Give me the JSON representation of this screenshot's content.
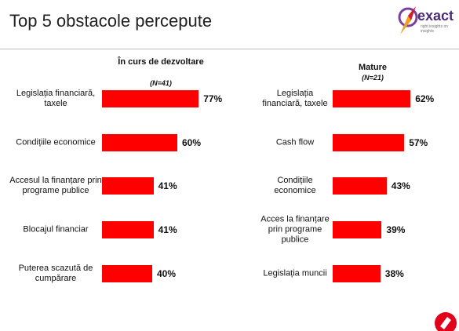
{
  "title": "Top 5 obstacole percepute",
  "logo": {
    "name": "exact",
    "tagline": "right insights on insights"
  },
  "chart_data": [
    {
      "type": "bar",
      "orientation": "horizontal",
      "title": "În curs de dezvoltare",
      "subtitle": "(N=41)",
      "categories": [
        "Legislația financiară, taxele",
        "Condițiile economice",
        "Accesul la finanțare prin programe publice",
        "Blocajul financiar",
        "Puterea scazută de cumpărare"
      ],
      "values": [
        77,
        60,
        41,
        41,
        40
      ],
      "value_labels": [
        "77%",
        "60%",
        "41%",
        "41%",
        "40%"
      ],
      "color": "#ff0000"
    },
    {
      "type": "bar",
      "orientation": "horizontal",
      "title": "Mature",
      "subtitle": "(N=21)",
      "categories": [
        "Legislația financiară, taxele",
        "Cash flow",
        "Condițiile economice",
        "Acces la finanțare prin programe publice",
        "Legislația muncii"
      ],
      "values": [
        62,
        57,
        43,
        39,
        38
      ],
      "value_labels": [
        "62%",
        "57%",
        "43%",
        "39%",
        "38%"
      ],
      "color": "#ff0000"
    }
  ]
}
